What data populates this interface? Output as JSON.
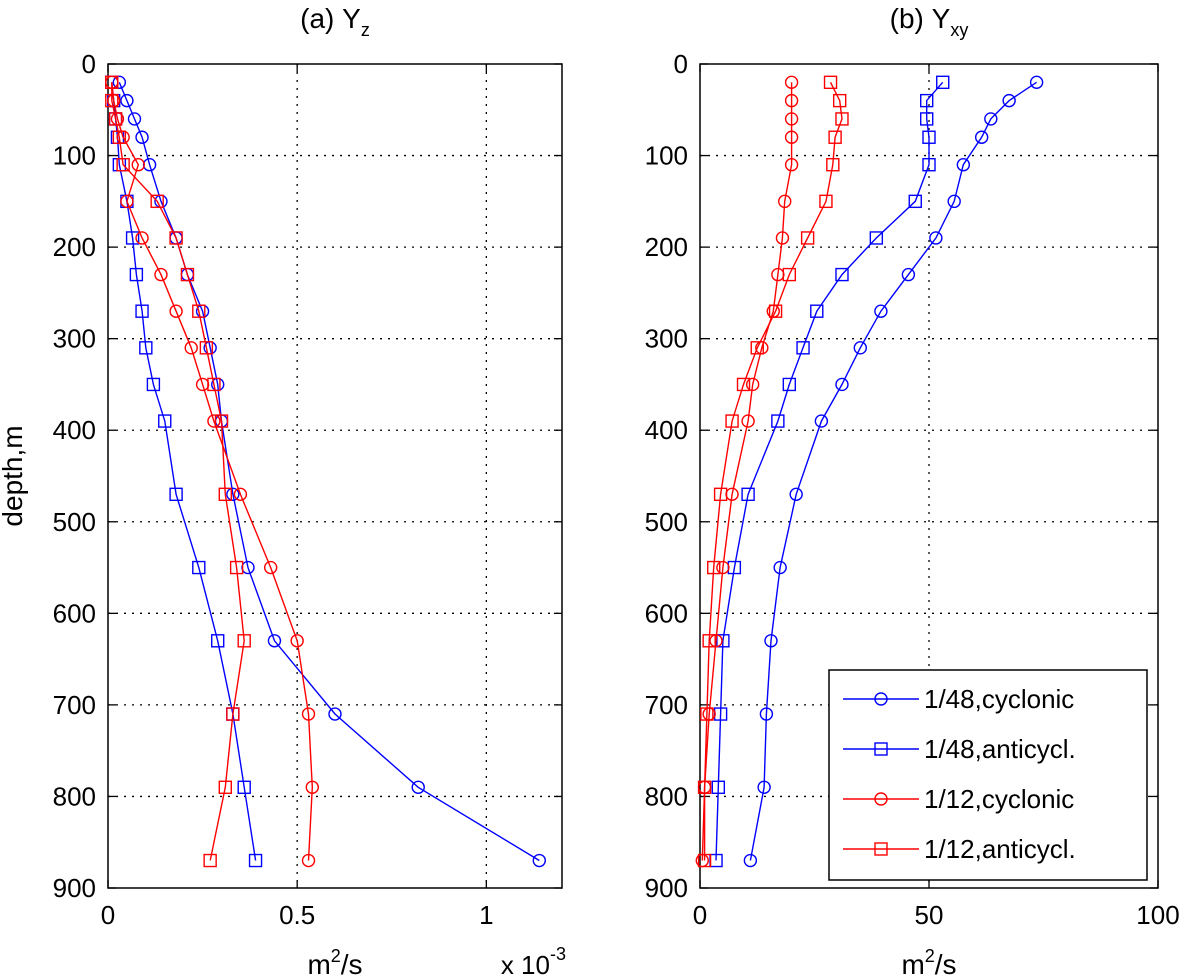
{
  "chart_data": [
    {
      "type": "line",
      "title": "(a) Υ",
      "title_subscript": "z",
      "xlabel": "m",
      "xlabel_sup": "2",
      "xlabel_rest": "/s",
      "ylabel": "depth,m",
      "x_multiplier": {
        "base": "x 10",
        "exponent": "-3"
      },
      "xlim": [
        0,
        1.2
      ],
      "ylim": [
        0,
        900
      ],
      "y_reversed": true,
      "grid": true,
      "xticks": [
        0,
        0.5,
        1
      ],
      "xtick_labels": [
        "0",
        "0.5",
        "1"
      ],
      "yticks": [
        0,
        100,
        200,
        300,
        400,
        500,
        600,
        700,
        800,
        900
      ],
      "ytick_labels": [
        "0",
        "100",
        "200",
        "300",
        "400",
        "500",
        "600",
        "700",
        "800",
        "900"
      ],
      "series": [
        {
          "name": "1/48,cyclonic",
          "color": "#0000ff",
          "marker": "circle",
          "x": [
            0.03,
            0.05,
            0.07,
            0.09,
            0.11,
            0.14,
            0.18,
            0.21,
            0.25,
            0.27,
            0.29,
            0.3,
            0.33,
            0.37,
            0.44,
            0.6,
            0.82,
            1.14
          ],
          "depth": [
            20,
            40,
            60,
            80,
            110,
            150,
            190,
            230,
            270,
            310,
            350,
            390,
            470,
            550,
            630,
            710,
            790,
            870
          ]
        },
        {
          "name": "1/48,anticycl.",
          "color": "#0000ff",
          "marker": "square",
          "x": [
            0.01,
            0.015,
            0.02,
            0.025,
            0.03,
            0.05,
            0.065,
            0.075,
            0.09,
            0.1,
            0.12,
            0.15,
            0.18,
            0.24,
            0.29,
            0.33,
            0.36,
            0.39
          ],
          "depth": [
            20,
            40,
            60,
            80,
            110,
            150,
            190,
            230,
            270,
            310,
            350,
            390,
            470,
            550,
            630,
            710,
            790,
            870
          ]
        },
        {
          "name": "1/12,cyclonic",
          "color": "#ff0000",
          "marker": "circle",
          "x": [
            0.01,
            0.015,
            0.025,
            0.04,
            0.08,
            0.05,
            0.09,
            0.14,
            0.18,
            0.22,
            0.25,
            0.28,
            0.35,
            0.43,
            0.5,
            0.53,
            0.54,
            0.53
          ],
          "depth": [
            20,
            40,
            60,
            80,
            110,
            150,
            190,
            230,
            270,
            310,
            350,
            390,
            470,
            550,
            630,
            710,
            790,
            870
          ]
        },
        {
          "name": "1/12,anticycl.",
          "color": "#ff0000",
          "marker": "square",
          "x": [
            0.01,
            0.01,
            0.02,
            0.03,
            0.04,
            0.13,
            0.18,
            0.21,
            0.24,
            0.26,
            0.28,
            0.3,
            0.31,
            0.34,
            0.36,
            0.33,
            0.31,
            0.27
          ],
          "depth": [
            20,
            40,
            60,
            80,
            110,
            150,
            190,
            230,
            270,
            310,
            350,
            390,
            470,
            550,
            630,
            710,
            790,
            870
          ]
        }
      ]
    },
    {
      "type": "line",
      "title": "(b) Υ",
      "title_subscript": "xy",
      "xlabel": "m",
      "xlabel_sup": "2",
      "xlabel_rest": "/s",
      "xlim": [
        0,
        100
      ],
      "ylim": [
        0,
        900
      ],
      "y_reversed": true,
      "grid": true,
      "xticks": [
        0,
        50,
        100
      ],
      "xtick_labels": [
        "0",
        "50",
        "100"
      ],
      "yticks": [
        0,
        100,
        200,
        300,
        400,
        500,
        600,
        700,
        800,
        900
      ],
      "ytick_labels": [
        "0",
        "100",
        "200",
        "300",
        "400",
        "500",
        "600",
        "700",
        "800",
        "900"
      ],
      "legend": {
        "placement": "bottom-right"
      },
      "series": [
        {
          "name": "1/48,cyclonic",
          "color": "#0000ff",
          "marker": "circle",
          "x": [
            73.5,
            67.5,
            63.5,
            61.5,
            57.5,
            55.5,
            51.5,
            45.5,
            39.5,
            35,
            31,
            26.5,
            21,
            17.5,
            15.5,
            14.5,
            14,
            11
          ],
          "depth": [
            20,
            40,
            60,
            80,
            110,
            150,
            190,
            230,
            270,
            310,
            350,
            390,
            470,
            550,
            630,
            710,
            790,
            870
          ]
        },
        {
          "name": "1/48,anticycl.",
          "color": "#0000ff",
          "marker": "square",
          "x": [
            53,
            49.5,
            49.5,
            50,
            50,
            47,
            38.5,
            31,
            25.5,
            22.5,
            19.5,
            17,
            10.5,
            7.5,
            5,
            4.5,
            4,
            3.5
          ],
          "depth": [
            20,
            40,
            60,
            80,
            110,
            150,
            190,
            230,
            270,
            310,
            350,
            390,
            470,
            550,
            630,
            710,
            790,
            870
          ]
        },
        {
          "name": "1/12,cyclonic",
          "color": "#ff0000",
          "marker": "circle",
          "x": [
            20,
            20,
            20,
            20,
            20,
            18.5,
            18,
            17,
            16,
            13.5,
            11.5,
            10.5,
            7,
            5,
            3.5,
            2,
            1,
            0.5
          ],
          "depth": [
            20,
            40,
            60,
            80,
            110,
            150,
            190,
            230,
            270,
            310,
            350,
            390,
            470,
            550,
            630,
            710,
            790,
            870
          ]
        },
        {
          "name": "1/12,anticycl.",
          "color": "#ff0000",
          "marker": "square",
          "x": [
            28.5,
            30.5,
            31,
            29.5,
            29,
            27.5,
            23.5,
            19.5,
            16.5,
            12.5,
            9.5,
            7,
            4.5,
            3,
            2,
            1.5,
            1,
            1
          ],
          "depth": [
            20,
            40,
            60,
            80,
            110,
            150,
            190,
            230,
            270,
            310,
            350,
            390,
            470,
            550,
            630,
            710,
            790,
            870
          ]
        }
      ]
    }
  ]
}
